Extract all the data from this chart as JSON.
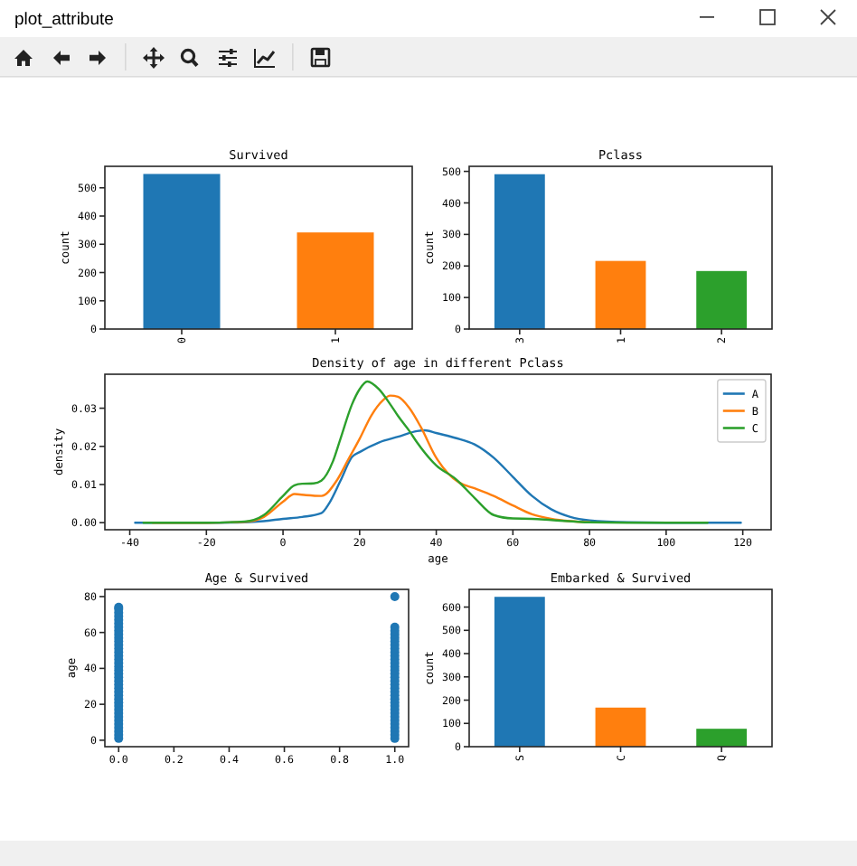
{
  "chart_data": [
    {
      "type": "other",
      "title": "plot_attribute"
    },
    {
      "type": "bar",
      "title": "Survived",
      "ylabel": "count",
      "categories": [
        "0",
        "1"
      ],
      "values": [
        549,
        342
      ],
      "colors": [
        "#1f77b4",
        "#ff7f0e"
      ],
      "ylim": [
        0,
        576
      ],
      "yticks": [
        0,
        100,
        200,
        300,
        400,
        500
      ]
    },
    {
      "type": "bar",
      "title": "Pclass",
      "ylabel": "count",
      "categories": [
        "3",
        "1",
        "2"
      ],
      "values": [
        491,
        216,
        184
      ],
      "colors": [
        "#1f77b4",
        "#ff7f0e",
        "#2ca02c"
      ],
      "ylim": [
        0,
        516
      ],
      "yticks": [
        0,
        100,
        200,
        300,
        400,
        500
      ]
    },
    {
      "type": "line",
      "title": "Density of age in different Pclass",
      "xlabel": "age",
      "ylabel": "density",
      "xlim": [
        -46.5,
        127.4
      ],
      "xticks": [
        -40,
        -20,
        0,
        20,
        40,
        60,
        80,
        100,
        120
      ],
      "ylim": [
        -0.00185,
        0.0389
      ],
      "yticks": [
        {
          "value": 0,
          "label": "0.00"
        },
        0.01,
        0.02,
        0.03
      ],
      "legend": "top right",
      "series": [
        {
          "name": "A",
          "color": "#1f77b4",
          "x": [
            -38.6,
            -20,
            -10,
            -5,
            0,
            5,
            10,
            12,
            15,
            18,
            20,
            25,
            30,
            35,
            37,
            40,
            45,
            50,
            55,
            60,
            65,
            70,
            75,
            80,
            90,
            100,
            119.5
          ],
          "values": [
            0,
            0,
            0.0001,
            0.0004,
            0.001,
            0.0015,
            0.0025,
            0.005,
            0.011,
            0.0172,
            0.0185,
            0.021,
            0.0225,
            0.024,
            0.0242,
            0.0235,
            0.0222,
            0.0205,
            0.017,
            0.012,
            0.007,
            0.0035,
            0.0015,
            0.0006,
            0.0001,
            0,
            0
          ]
        },
        {
          "name": "B",
          "color": "#ff7f0e",
          "x": [
            -34,
            -20,
            -10,
            -5,
            0,
            3,
            6,
            10,
            14,
            17,
            20,
            23,
            26,
            28,
            30,
            33,
            36,
            40,
            43,
            46,
            50,
            55,
            60,
            65,
            70,
            75,
            80
          ],
          "values": [
            0,
            0,
            0.0002,
            0.0015,
            0.0055,
            0.0075,
            0.0072,
            0.007,
            0.011,
            0.0165,
            0.022,
            0.028,
            0.032,
            0.0333,
            0.033,
            0.03,
            0.025,
            0.017,
            0.013,
            0.0105,
            0.009,
            0.007,
            0.0045,
            0.0022,
            0.001,
            0.0004,
            0.0001
          ]
        },
        {
          "name": "C",
          "color": "#2ca02c",
          "x": [
            -36.4,
            -20,
            -10,
            -5,
            0,
            3,
            5,
            8,
            10,
            13,
            15,
            18,
            20,
            22,
            25,
            28,
            30,
            33,
            35,
            40,
            45,
            50,
            55,
            60,
            65,
            70,
            80,
            90,
            110.8
          ],
          "values": [
            0,
            0,
            0.0003,
            0.002,
            0.007,
            0.0098,
            0.0102,
            0.0103,
            0.011,
            0.016,
            0.022,
            0.031,
            0.035,
            0.037,
            0.035,
            0.031,
            0.028,
            0.024,
            0.021,
            0.015,
            0.0115,
            0.0065,
            0.002,
            0.0011,
            0.001,
            0.0007,
            0.0001,
            0,
            0
          ]
        }
      ]
    },
    {
      "type": "scatter",
      "title": "Age & Survived",
      "ylabel": "age",
      "marker": "circle",
      "xlim": [
        -0.05,
        1.05
      ],
      "xticks": [
        {
          "value": 0,
          "label": "0.0"
        },
        0.2,
        0.4,
        0.6,
        0.8,
        {
          "value": 1,
          "label": "1.0"
        }
      ],
      "ylim": [
        -3.6,
        84
      ],
      "yticks": [
        0,
        20,
        40,
        60,
        80
      ],
      "series": [
        {
          "color": "#1f77b4",
          "x": [
            1,
            0,
            1,
            0,
            0,
            0,
            0,
            0,
            0,
            0,
            0,
            0,
            0,
            0,
            0,
            0,
            0,
            0,
            0,
            0,
            0,
            0,
            0,
            0,
            0,
            0,
            0,
            0,
            0,
            0,
            0,
            0,
            0,
            0,
            0,
            0,
            0,
            0,
            0,
            0,
            1,
            1,
            1,
            1,
            1,
            1,
            1,
            1,
            1,
            1,
            1,
            1,
            1,
            1,
            1,
            1,
            1,
            1,
            1,
            1,
            1,
            1,
            1,
            1,
            1,
            1,
            1,
            1,
            1,
            1,
            1
          ],
          "values": [
            80,
            74,
            63,
            1,
            3,
            5,
            7,
            9,
            11,
            13,
            15,
            17,
            19,
            21,
            23,
            25,
            27,
            29,
            31,
            33,
            35,
            37,
            39,
            41,
            43,
            45,
            47,
            49,
            51,
            53,
            55,
            57,
            59,
            61,
            63,
            65,
            67,
            69,
            71,
            73,
            1,
            3,
            5,
            7,
            9,
            11,
            13,
            15,
            17,
            19,
            21,
            23,
            25,
            27,
            29,
            31,
            33,
            35,
            37,
            39,
            41,
            43,
            45,
            47,
            49,
            51,
            53,
            55,
            57,
            59,
            61
          ]
        }
      ]
    },
    {
      "type": "bar",
      "title": "Embarked & Survived",
      "ylabel": "count",
      "categories": [
        "S",
        "C",
        "Q"
      ],
      "values": [
        644,
        168,
        77
      ],
      "colors": [
        "#1f77b4",
        "#ff7f0e",
        "#2ca02c"
      ],
      "ylim": [
        0,
        676
      ],
      "yticks": [
        0,
        100,
        200,
        300,
        400,
        500,
        600
      ]
    }
  ]
}
